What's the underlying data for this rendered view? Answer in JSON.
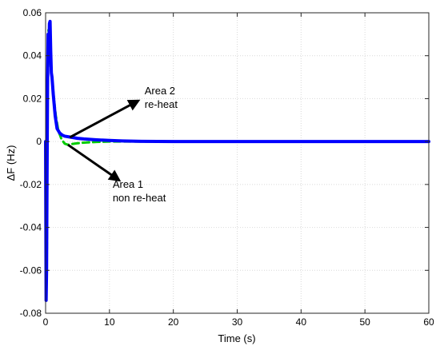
{
  "chart_data": {
    "type": "line",
    "title": "",
    "xlabel": "Time (s)",
    "ylabel": "ΔF (Hz)",
    "xlim": [
      0,
      60
    ],
    "ylim": [
      -0.08,
      0.06
    ],
    "xticks": [
      0,
      10,
      20,
      30,
      40,
      50,
      60
    ],
    "yticks": [
      -0.08,
      -0.06,
      -0.04,
      -0.02,
      0,
      0.02,
      0.04,
      0.06
    ],
    "grid": true,
    "series": [
      {
        "color": "#00cc00",
        "style": "dashed",
        "x": [
          0,
          0.1,
          0.2,
          0.3,
          0.45,
          0.6,
          0.8,
          1.0,
          1.3,
          1.6,
          2.0,
          2.5,
          3.0,
          3.5,
          4.0,
          5.0,
          6.0,
          8.0,
          10.0,
          15.0,
          20.0,
          30.0,
          40.0,
          50.0,
          60.0
        ],
        "y": [
          0,
          -0.071,
          -0.05,
          0.03,
          0.052,
          0.048,
          0.034,
          0.03,
          0.02,
          0.012,
          0.005,
          0.001,
          -0.001,
          -0.0015,
          -0.0012,
          -0.0008,
          -0.0005,
          -0.0002,
          0,
          0,
          0,
          0,
          0,
          0,
          0
        ]
      },
      {
        "color": "#0000ff",
        "style": "solid",
        "x": [
          0,
          0.08,
          0.15,
          0.22,
          0.3,
          0.4,
          0.5,
          0.6,
          0.7,
          0.8,
          0.9,
          1.0,
          1.2,
          1.5,
          1.8,
          2.2,
          2.6,
          3.0,
          4.0,
          5.0,
          6.0,
          8.0,
          10.0,
          12.0,
          15.0,
          20.0,
          30.0,
          40.0,
          50.0,
          60.0
        ],
        "y": [
          0,
          -0.074,
          -0.06,
          -0.02,
          0.025,
          0.05,
          0.04,
          0.055,
          0.056,
          0.042,
          0.032,
          0.03,
          0.022,
          0.012,
          0.006,
          0.004,
          0.003,
          0.0025,
          0.002,
          0.0015,
          0.0012,
          0.0008,
          0.0005,
          0.0003,
          0.0001,
          0,
          0,
          0,
          0,
          0
        ]
      }
    ],
    "annotations": [
      {
        "lines": [
          "Area 2",
          "re-heat"
        ],
        "text_at": [
          15.5,
          0.019
        ],
        "arrow_from": [
          3.8,
          0.002
        ],
        "arrow_to": [
          14.5,
          0.019
        ]
      },
      {
        "lines": [
          "Area 1",
          "non re-heat"
        ],
        "text_at": [
          10.5,
          -0.0245
        ],
        "arrow_from": [
          3.5,
          -0.0015
        ],
        "arrow_to": [
          11.5,
          -0.018
        ]
      }
    ]
  }
}
